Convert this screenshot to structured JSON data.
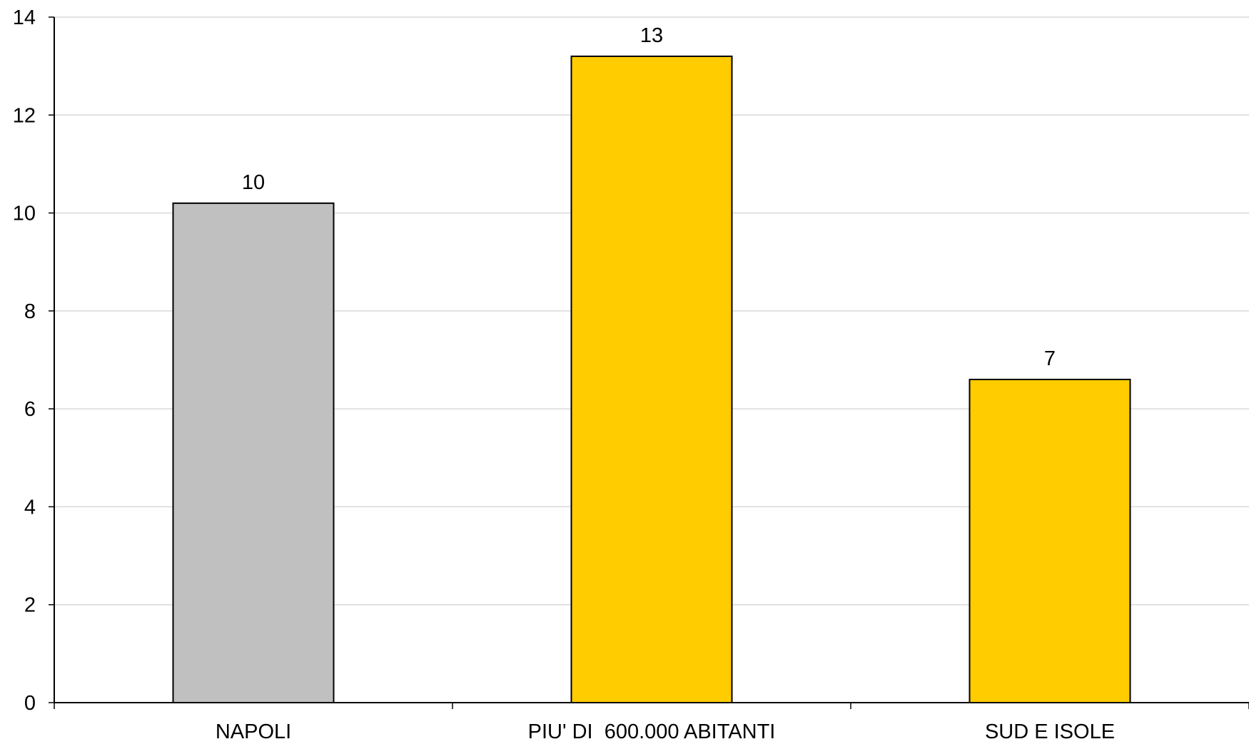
{
  "chart_data": {
    "type": "bar",
    "categories": [
      "NAPOLI",
      "PIU' DI  600.000 ABITANTI",
      "SUD E ISOLE"
    ],
    "values": [
      10.2,
      13.2,
      6.6
    ],
    "data_labels": [
      "10",
      "13",
      "7"
    ],
    "bar_colors": [
      "#c0c0c0",
      "#ffcc00",
      "#ffcc00"
    ],
    "ylim": [
      0,
      14
    ],
    "yticks": [
      0,
      2,
      4,
      6,
      8,
      10,
      12,
      14
    ],
    "grid": true,
    "grid_color": "#d9d9d9",
    "title": "",
    "xlabel": "",
    "ylabel": ""
  }
}
